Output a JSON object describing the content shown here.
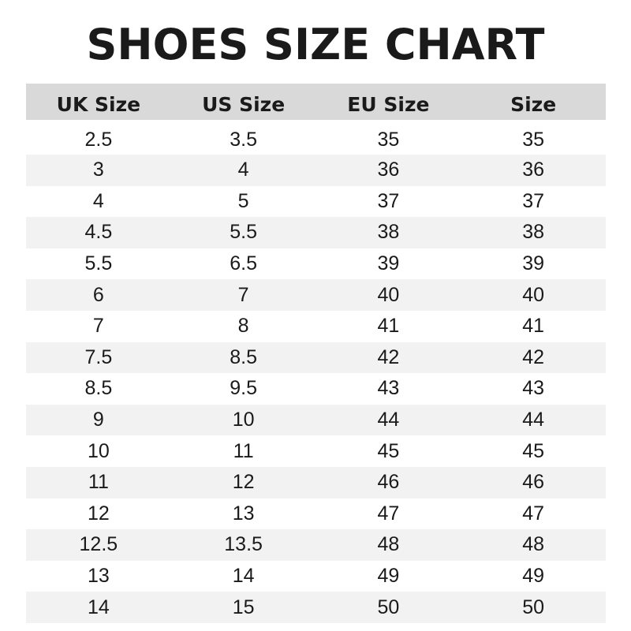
{
  "title": "SHOES SIZE CHART",
  "table": {
    "headers": [
      "UK Size",
      "US Size",
      "EU Size",
      "Size"
    ],
    "rows": [
      [
        "2.5",
        "3.5",
        "35",
        "35"
      ],
      [
        "3",
        "4",
        "36",
        "36"
      ],
      [
        "4",
        "5",
        "37",
        "37"
      ],
      [
        "4.5",
        "5.5",
        "38",
        "38"
      ],
      [
        "5.5",
        "6.5",
        "39",
        "39"
      ],
      [
        "6",
        "7",
        "40",
        "40"
      ],
      [
        "7",
        "8",
        "41",
        "41"
      ],
      [
        "7.5",
        "8.5",
        "42",
        "42"
      ],
      [
        "8.5",
        "9.5",
        "43",
        "43"
      ],
      [
        "9",
        "10",
        "44",
        "44"
      ],
      [
        "10",
        "11",
        "45",
        "45"
      ],
      [
        "11",
        "12",
        "46",
        "46"
      ],
      [
        "12",
        "13",
        "47",
        "47"
      ],
      [
        "12.5",
        "13.5",
        "48",
        "48"
      ],
      [
        "13",
        "14",
        "49",
        "49"
      ],
      [
        "14",
        "15",
        "50",
        "50"
      ]
    ]
  },
  "colors": {
    "header_bg": "#d9d9d9",
    "stripe_bg": "#f2f2f2",
    "text": "#1a1a1a"
  }
}
